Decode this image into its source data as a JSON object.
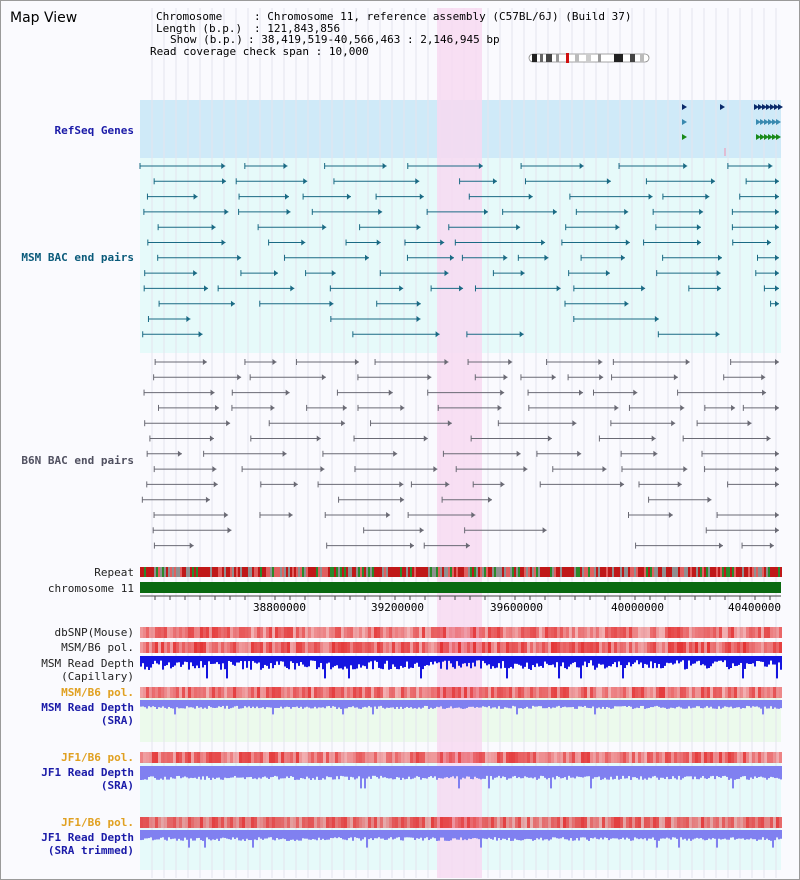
{
  "page": {
    "title": "Map View",
    "info": {
      "chromosome_label": "Chromosome",
      "chromosome_value": "Chromosome 11, reference assembly (C57BL/6J) (Build 37)",
      "length_label": "Length (b.p.)",
      "length_value": "121,843,856",
      "show_label": "Show (b.p.)",
      "show_value": "38,419,519-40,566,463 : 2,146,945 bp",
      "span_label": "Read coverage check span",
      "span_value": "10,000"
    }
  },
  "tracks": {
    "refseq": "RefSeq Genes",
    "msm_bac": "MSM BAC end pairs",
    "b6n_bac": "B6N BAC end pairs",
    "repeat": "Repeat",
    "chromosome": "chromosome 11",
    "dbsnp": "dbSNP(Mouse)",
    "msm_b6_pol_1": "MSM/B6 pol.",
    "msm_depth_cap_1": "MSM Read Depth",
    "msm_depth_cap_2": "(Capillary)",
    "msm_b6_pol_2": "MSM/B6 pol.",
    "msm_depth_sra_1": "MSM Read Depth",
    "msm_depth_sra_2": "(SRA)",
    "jf1_b6_pol_1": "JF1/B6 pol.",
    "jf1_depth_sra_1": "JF1 Read Depth",
    "jf1_depth_sra_2": "(SRA)",
    "jf1_b6_pol_2": "JF1/B6 pol.",
    "jf1_depth_trim_1": "JF1 Read Depth",
    "jf1_depth_trim_2": "(SRA trimmed)"
  },
  "axis": {
    "ticks": [
      "38800000",
      "39200000",
      "39600000",
      "40000000",
      "40400000"
    ]
  },
  "colors": {
    "refseq_bg": "#cfeaf8",
    "msm_bg": "#e6fafa",
    "highlight": "#f7d9f1",
    "chromosome": "#0a6a10",
    "depth_cap": "#1414e0",
    "depth_sra": "#8080f0"
  }
}
